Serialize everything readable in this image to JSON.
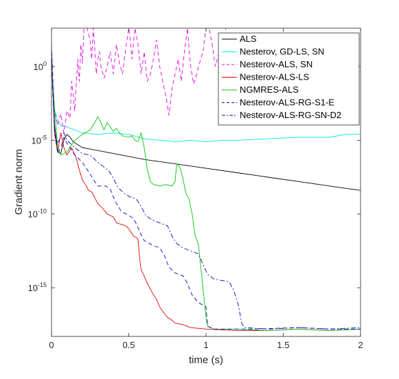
{
  "chart_data": {
    "type": "line",
    "title": "",
    "xlabel": "time (s)",
    "ylabel": "Gradient norm",
    "xlim": [
      0,
      2
    ],
    "ylim_log10": [
      -18.3,
      2.6
    ],
    "y_scale": "log",
    "grid": false,
    "legend_position": "top-right",
    "x_ticks": [
      {
        "value": 0,
        "label": "0"
      },
      {
        "value": 0.5,
        "label": "0.5"
      },
      {
        "value": 1,
        "label": "1"
      },
      {
        "value": 1.5,
        "label": "1.5"
      },
      {
        "value": 2,
        "label": "2"
      }
    ],
    "y_ticks": [
      {
        "exp": 0,
        "base": "10",
        "power": "0"
      },
      {
        "exp": -5,
        "base": "10",
        "power": "-5"
      },
      {
        "exp": -10,
        "base": "10",
        "power": "-10"
      },
      {
        "exp": -15,
        "base": "10",
        "power": "-15"
      }
    ],
    "series": [
      {
        "name": "ALS",
        "color": "#000000",
        "dash": "solid",
        "points": [
          [
            0.0,
            1.2
          ],
          [
            0.008,
            -1.5
          ],
          [
            0.02,
            -4.0
          ],
          [
            0.04,
            -5.8
          ],
          [
            0.06,
            -5.9
          ],
          [
            0.08,
            -5.0
          ],
          [
            0.1,
            -4.6
          ],
          [
            0.12,
            -4.8
          ],
          [
            0.14,
            -5.1
          ],
          [
            0.2,
            -5.5
          ],
          [
            0.4,
            -5.9
          ],
          [
            0.6,
            -6.3
          ],
          [
            0.8,
            -6.6
          ],
          [
            1.0,
            -6.9
          ],
          [
            1.2,
            -7.2
          ],
          [
            1.4,
            -7.5
          ],
          [
            1.6,
            -7.8
          ],
          [
            1.8,
            -8.1
          ],
          [
            2.0,
            -8.4
          ]
        ]
      },
      {
        "name": "Nesterov, GD-LS, SN",
        "color": "#00e5e5",
        "dash": "solid",
        "points": [
          [
            0.0,
            1.0
          ],
          [
            0.008,
            -1.0
          ],
          [
            0.02,
            -2.9
          ],
          [
            0.04,
            -3.7
          ],
          [
            0.06,
            -4.0
          ],
          [
            0.1,
            -4.1
          ],
          [
            0.15,
            -4.3
          ],
          [
            0.2,
            -4.5
          ],
          [
            0.3,
            -4.6
          ],
          [
            0.4,
            -4.5
          ],
          [
            0.5,
            -4.6
          ],
          [
            0.6,
            -4.9
          ],
          [
            0.7,
            -5.0
          ],
          [
            0.8,
            -5.1
          ],
          [
            0.9,
            -5.0
          ],
          [
            1.0,
            -5.1
          ],
          [
            1.1,
            -5.0
          ],
          [
            1.2,
            -5.0
          ],
          [
            1.4,
            -4.9
          ],
          [
            1.6,
            -4.8
          ],
          [
            1.8,
            -4.8
          ],
          [
            1.9,
            -4.6
          ],
          [
            2.0,
            -4.6
          ]
        ]
      },
      {
        "name": "Nesterov-ALS, SN",
        "color": "#e000e0",
        "dash": "dash",
        "points": [
          [
            0.0,
            1.5
          ],
          [
            0.01,
            -1.0
          ],
          [
            0.02,
            -3.0
          ],
          [
            0.04,
            -4.0
          ],
          [
            0.06,
            -3.2
          ],
          [
            0.08,
            -4.5
          ],
          [
            0.1,
            -3.0
          ],
          [
            0.12,
            -3.5
          ],
          [
            0.13,
            -1.0
          ],
          [
            0.15,
            -3.0
          ],
          [
            0.17,
            0.5
          ],
          [
            0.18,
            -1.0
          ],
          [
            0.19,
            1.5
          ],
          [
            0.2,
            0.2
          ],
          [
            0.21,
            2.6
          ],
          [
            0.23,
            2.6
          ],
          [
            0.25,
            1.8
          ],
          [
            0.26,
            0.5
          ],
          [
            0.27,
            2.6
          ],
          [
            0.28,
            1.2
          ],
          [
            0.29,
            -0.5
          ],
          [
            0.3,
            0.5
          ],
          [
            0.31,
            1.0
          ],
          [
            0.32,
            0.0
          ],
          [
            0.34,
            -0.8
          ],
          [
            0.36,
            0.0
          ],
          [
            0.38,
            1.0
          ],
          [
            0.4,
            -0.5
          ],
          [
            0.42,
            1.5
          ],
          [
            0.44,
            0.2
          ],
          [
            0.46,
            -0.5
          ],
          [
            0.48,
            1.2
          ],
          [
            0.5,
            2.6
          ],
          [
            0.51,
            1.8
          ],
          [
            0.52,
            0.5
          ],
          [
            0.54,
            2.6
          ],
          [
            0.56,
            1.5
          ],
          [
            0.58,
            -0.5
          ],
          [
            0.6,
            1.0
          ],
          [
            0.62,
            -1.0
          ],
          [
            0.64,
            -0.5
          ],
          [
            0.66,
            0.5
          ],
          [
            0.68,
            1.8
          ],
          [
            0.7,
            0.0
          ],
          [
            0.72,
            -1.0
          ],
          [
            0.74,
            -2.0
          ],
          [
            0.76,
            -3.3
          ],
          [
            0.78,
            -1.5
          ],
          [
            0.8,
            -0.5
          ],
          [
            0.82,
            0.5
          ],
          [
            0.84,
            -1.0
          ],
          [
            0.86,
            1.0
          ],
          [
            0.88,
            2.6
          ],
          [
            0.9,
            0.0
          ],
          [
            0.92,
            -1.2
          ],
          [
            0.94,
            -0.5
          ],
          [
            0.96,
            0.3
          ],
          [
            0.98,
            1.0
          ],
          [
            1.0,
            2.6
          ],
          [
            1.02,
            2.6
          ],
          [
            1.04,
            1.5
          ],
          [
            1.06,
            0.0
          ],
          [
            1.08,
            0.8
          ],
          [
            1.1,
            1.8
          ],
          [
            1.13,
            2.6
          ]
        ]
      },
      {
        "name": "Nesterov-ALS-LS",
        "color": "#e00000",
        "dash": "solid",
        "points": [
          [
            0.0,
            1.0
          ],
          [
            0.008,
            -1.5
          ],
          [
            0.02,
            -4.5
          ],
          [
            0.04,
            -5.8
          ],
          [
            0.06,
            -4.5
          ],
          [
            0.08,
            -5.5
          ],
          [
            0.1,
            -6.0
          ],
          [
            0.13,
            -5.5
          ],
          [
            0.16,
            -6.2
          ],
          [
            0.18,
            -7.0
          ],
          [
            0.2,
            -7.7
          ],
          [
            0.22,
            -8.0
          ],
          [
            0.24,
            -8.4
          ],
          [
            0.26,
            -8.5
          ],
          [
            0.28,
            -8.9
          ],
          [
            0.3,
            -9.3
          ],
          [
            0.33,
            -9.6
          ],
          [
            0.36,
            -10.0
          ],
          [
            0.4,
            -10.2
          ],
          [
            0.42,
            -10.6
          ],
          [
            0.45,
            -10.7
          ],
          [
            0.48,
            -10.8
          ],
          [
            0.5,
            -11.0
          ],
          [
            0.53,
            -11.5
          ],
          [
            0.55,
            -11.6
          ],
          [
            0.56,
            -11.7
          ],
          [
            0.57,
            -13.0
          ],
          [
            0.58,
            -13.8
          ],
          [
            0.6,
            -14.2
          ],
          [
            0.62,
            -14.7
          ],
          [
            0.65,
            -15.3
          ],
          [
            0.68,
            -15.8
          ],
          [
            0.7,
            -16.3
          ],
          [
            0.72,
            -16.6
          ],
          [
            0.75,
            -17.0
          ],
          [
            0.78,
            -17.2
          ],
          [
            0.8,
            -17.4
          ],
          [
            0.85,
            -17.5
          ],
          [
            0.9,
            -17.7
          ],
          [
            1.0,
            -17.8
          ],
          [
            1.2,
            -17.9
          ],
          [
            1.4,
            -17.9
          ],
          [
            1.6,
            -17.8
          ],
          [
            1.8,
            -17.9
          ],
          [
            2.0,
            -17.8
          ]
        ]
      },
      {
        "name": "NGMRES-ALS",
        "color": "#00c800",
        "dash": "solid",
        "points": [
          [
            0.0,
            1.0
          ],
          [
            0.008,
            -1.0
          ],
          [
            0.02,
            -3.0
          ],
          [
            0.04,
            -5.5
          ],
          [
            0.06,
            -6.0
          ],
          [
            0.1,
            -5.8
          ],
          [
            0.15,
            -5.0
          ],
          [
            0.2,
            -4.6
          ],
          [
            0.25,
            -4.3
          ],
          [
            0.28,
            -3.8
          ],
          [
            0.3,
            -3.4
          ],
          [
            0.32,
            -3.8
          ],
          [
            0.34,
            -4.3
          ],
          [
            0.36,
            -3.8
          ],
          [
            0.4,
            -4.4
          ],
          [
            0.42,
            -4.2
          ],
          [
            0.44,
            -4.5
          ],
          [
            0.46,
            -4.7
          ],
          [
            0.5,
            -4.8
          ],
          [
            0.52,
            -4.7
          ],
          [
            0.54,
            -5.0
          ],
          [
            0.56,
            -5.1
          ],
          [
            0.58,
            -4.5
          ],
          [
            0.6,
            -5.5
          ],
          [
            0.62,
            -7.0
          ],
          [
            0.64,
            -7.8
          ],
          [
            0.66,
            -8.0
          ],
          [
            0.7,
            -8.1
          ],
          [
            0.74,
            -8.0
          ],
          [
            0.78,
            -8.1
          ],
          [
            0.8,
            -7.8
          ],
          [
            0.81,
            -6.6
          ],
          [
            0.83,
            -6.8
          ],
          [
            0.85,
            -7.6
          ],
          [
            0.87,
            -8.6
          ],
          [
            0.89,
            -9.0
          ],
          [
            0.91,
            -10.0
          ],
          [
            0.93,
            -11.5
          ],
          [
            0.95,
            -12.0
          ],
          [
            0.97,
            -14.0
          ],
          [
            0.99,
            -16.0
          ],
          [
            1.0,
            -17.0
          ],
          [
            1.01,
            -17.6
          ],
          [
            1.05,
            -17.8
          ],
          [
            1.2,
            -17.8
          ],
          [
            1.4,
            -17.9
          ],
          [
            1.6,
            -17.8
          ],
          [
            1.8,
            -17.9
          ],
          [
            2.0,
            -17.8
          ]
        ]
      },
      {
        "name": "Nesterov-ALS-RG-S1-E",
        "color": "#0000cc",
        "dash": "dash",
        "points": [
          [
            0.0,
            1.0
          ],
          [
            0.008,
            -1.5
          ],
          [
            0.02,
            -4.5
          ],
          [
            0.04,
            -5.9
          ],
          [
            0.06,
            -5.5
          ],
          [
            0.08,
            -4.8
          ],
          [
            0.1,
            -5.2
          ],
          [
            0.15,
            -6.0
          ],
          [
            0.2,
            -6.5
          ],
          [
            0.25,
            -7.3
          ],
          [
            0.28,
            -7.8
          ],
          [
            0.3,
            -8.1
          ],
          [
            0.35,
            -8.1
          ],
          [
            0.38,
            -8.3
          ],
          [
            0.41,
            -9.1
          ],
          [
            0.45,
            -9.8
          ],
          [
            0.5,
            -10.1
          ],
          [
            0.53,
            -10.3
          ],
          [
            0.55,
            -10.7
          ],
          [
            0.58,
            -11.4
          ],
          [
            0.6,
            -11.8
          ],
          [
            0.65,
            -12.1
          ],
          [
            0.7,
            -12.3
          ],
          [
            0.73,
            -12.8
          ],
          [
            0.76,
            -13.6
          ],
          [
            0.8,
            -14.0
          ],
          [
            0.85,
            -14.2
          ],
          [
            0.88,
            -14.7
          ],
          [
            0.91,
            -15.5
          ],
          [
            0.95,
            -16.0
          ],
          [
            1.0,
            -16.3
          ],
          [
            1.01,
            -17.6
          ],
          [
            1.05,
            -17.8
          ],
          [
            1.3,
            -17.8
          ],
          [
            1.6,
            -17.7
          ],
          [
            1.8,
            -17.8
          ],
          [
            2.0,
            -17.8
          ]
        ]
      },
      {
        "name": "Nesterov-ALS-RG-SN-D2",
        "color": "#0000cc",
        "dash": "dashdot",
        "points": [
          [
            0.0,
            1.0
          ],
          [
            0.008,
            -1.5
          ],
          [
            0.02,
            -4.5
          ],
          [
            0.04,
            -5.2
          ],
          [
            0.06,
            -4.8
          ],
          [
            0.08,
            -4.5
          ],
          [
            0.1,
            -5.0
          ],
          [
            0.15,
            -5.5
          ],
          [
            0.2,
            -5.9
          ],
          [
            0.25,
            -6.0
          ],
          [
            0.3,
            -6.5
          ],
          [
            0.35,
            -6.9
          ],
          [
            0.38,
            -7.2
          ],
          [
            0.4,
            -7.6
          ],
          [
            0.43,
            -8.2
          ],
          [
            0.47,
            -8.6
          ],
          [
            0.5,
            -8.8
          ],
          [
            0.55,
            -9.0
          ],
          [
            0.58,
            -9.5
          ],
          [
            0.61,
            -10.1
          ],
          [
            0.65,
            -10.4
          ],
          [
            0.7,
            -10.6
          ],
          [
            0.75,
            -10.8
          ],
          [
            0.78,
            -11.5
          ],
          [
            0.81,
            -12.0
          ],
          [
            0.85,
            -12.3
          ],
          [
            0.9,
            -12.5
          ],
          [
            0.95,
            -12.7
          ],
          [
            0.98,
            -13.4
          ],
          [
            1.01,
            -14.1
          ],
          [
            1.05,
            -14.4
          ],
          [
            1.1,
            -14.5
          ],
          [
            1.15,
            -14.6
          ],
          [
            1.18,
            -15.2
          ],
          [
            1.21,
            -16.2
          ],
          [
            1.23,
            -17.4
          ],
          [
            1.25,
            -17.7
          ],
          [
            1.4,
            -17.8
          ],
          [
            1.6,
            -17.7
          ],
          [
            1.8,
            -17.8
          ],
          [
            2.0,
            -17.7
          ]
        ]
      }
    ]
  }
}
